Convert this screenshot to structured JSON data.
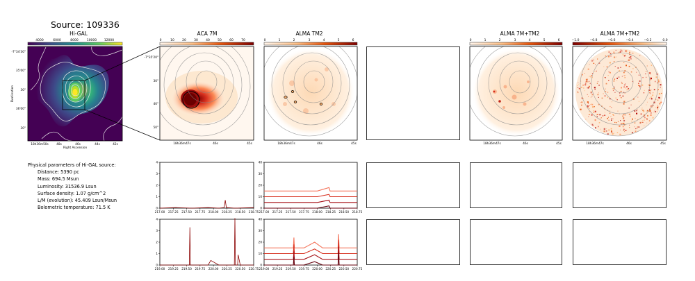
{
  "page_title": "Source: 109336",
  "panel_titles": {
    "higal": "Hi-GAL",
    "aca7m": "ACA 7M",
    "almatm2": "ALMA TM2",
    "combo1": "ALMA 7M+TM2",
    "combo2": "ALMA 7M+TM2"
  },
  "colorbars": {
    "higal": {
      "ticks": [
        "4000",
        "6000",
        "8000",
        "10000",
        "12000"
      ]
    },
    "aca7m": {
      "ticks": [
        "0",
        "10",
        "20",
        "30",
        "40",
        "50",
        "60",
        "70"
      ]
    },
    "almatm2": {
      "ticks": [
        "0",
        "1",
        "2",
        "3",
        "4",
        "5",
        "6"
      ]
    },
    "combo1": {
      "ticks": [
        "0",
        "1",
        "2",
        "3",
        "4",
        "5",
        "6"
      ]
    },
    "combo2": {
      "ticks": [
        "−1.0",
        "−0.8",
        "−0.6",
        "−0.4",
        "−0.2",
        "0.0"
      ]
    }
  },
  "higal_axes": {
    "yticks": [
      "-7°34'30\"",
      "35'00\"",
      "30\"",
      "36'00\"",
      "30\""
    ],
    "xticks": [
      "18h36m50s",
      "48s",
      "46s",
      "44s",
      "42s"
    ],
    "xlabel": "Right Ascension",
    "ylabel": "Declination"
  },
  "alma_axes": {
    "yticks": [
      "-7°35'20\"",
      "30\"",
      "40\"",
      "50\""
    ],
    "xticks": [
      "18h36m47s",
      "46s",
      "45s"
    ]
  },
  "params": {
    "header": "Physical parameters of Hi-GAL source:",
    "lines": [
      "Distance: 5390 pc",
      "Mass: 694.5 Msun",
      "Luminosity: 31536.9 Lsun",
      "Surface density: 1.07 g/cm^2",
      "L/M (evolution): 45.409 Lsun/Msun",
      "Bolometric temperature: 71.5 K"
    ]
  },
  "colors": {
    "spectrum_aca": "#8b0000",
    "spectrum_alma": [
      "#f4735a",
      "#d7301f",
      "#a50f15",
      "#67000d"
    ],
    "viridis_low": "#440154",
    "viridis_high": "#fde725"
  },
  "chart_data": [
    {
      "type": "line",
      "title": "",
      "panel": "ACA 7M spectrum, lower band",
      "xlim": [
        217.0,
        218.75
      ],
      "ylim": [
        0,
        4
      ],
      "xticks": [
        "217.00",
        "217.25",
        "217.50",
        "217.75",
        "218.00",
        "218.25",
        "218.50",
        "218.75"
      ],
      "yticks": [
        "0",
        "1",
        "2",
        "3",
        "4"
      ],
      "series": [
        {
          "x": [
            217.0,
            217.3,
            217.6,
            217.9,
            218.1,
            218.2,
            218.22,
            218.24,
            218.4,
            218.75
          ],
          "y": [
            0.0,
            0.05,
            0.0,
            0.05,
            0.0,
            0.05,
            0.7,
            0.05,
            0.0,
            0.05
          ]
        }
      ]
    },
    {
      "type": "line",
      "title": "",
      "panel": "ALMA TM2 spectrum, lower band",
      "xlim": [
        217.0,
        218.75
      ],
      "ylim": [
        0,
        40
      ],
      "xticks": [
        "217.00",
        "217.25",
        "217.50",
        "217.75",
        "218.00",
        "218.25",
        "218.50",
        "218.75"
      ],
      "yticks": [
        "0",
        "10",
        "20",
        "30",
        "40"
      ],
      "series": [
        {
          "x": [
            217.0,
            217.5,
            218.0,
            218.22,
            218.24,
            218.75
          ],
          "y": [
            15,
            15,
            15,
            18,
            15,
            15
          ]
        },
        {
          "x": [
            217.0,
            217.5,
            218.0,
            218.22,
            218.24,
            218.75
          ],
          "y": [
            10,
            10,
            10,
            12,
            10,
            10
          ]
        },
        {
          "x": [
            217.0,
            217.5,
            218.0,
            218.22,
            218.24,
            218.75
          ],
          "y": [
            5,
            5,
            5,
            7,
            5,
            5
          ]
        },
        {
          "x": [
            217.0,
            217.5,
            218.0,
            218.22,
            218.24,
            218.75
          ],
          "y": [
            0,
            0,
            0,
            2,
            0,
            0
          ]
        }
      ]
    },
    {
      "type": "line",
      "title": "",
      "panel": "ACA 7M spectrum, upper band",
      "xlim": [
        219.0,
        220.75
      ],
      "ylim": [
        0,
        4
      ],
      "xticks": [
        "219.00",
        "219.25",
        "219.50",
        "219.75",
        "220.00",
        "220.25",
        "220.50",
        "220.75"
      ],
      "yticks": [
        "0",
        "1",
        "2",
        "3",
        "4"
      ],
      "series": [
        {
          "x": [
            219.0,
            219.55,
            219.56,
            219.57,
            219.9,
            219.95,
            220.1,
            220.39,
            220.4,
            220.41,
            220.45,
            220.46,
            220.5,
            220.75
          ],
          "y": [
            0.0,
            0.0,
            3.3,
            0.0,
            0.0,
            0.4,
            0.0,
            0.0,
            4.1,
            0.0,
            0.0,
            0.9,
            0.0,
            0.0
          ]
        }
      ]
    },
    {
      "type": "line",
      "title": "",
      "panel": "ALMA TM2 spectrum, upper band",
      "xlim": [
        219.0,
        220.75
      ],
      "ylim": [
        0,
        40
      ],
      "xticks": [
        "219.00",
        "219.25",
        "219.50",
        "219.75",
        "220.00",
        "220.25",
        "220.50",
        "220.75"
      ],
      "yticks": [
        "0",
        "10",
        "20",
        "30",
        "40"
      ],
      "series": [
        {
          "x": [
            219.0,
            219.55,
            219.56,
            219.57,
            219.75,
            219.95,
            220.1,
            220.39,
            220.4,
            220.41,
            220.75
          ],
          "y": [
            15,
            15,
            24,
            15,
            15,
            20,
            15,
            15,
            27,
            15,
            15
          ]
        },
        {
          "x": [
            219.0,
            219.55,
            219.56,
            219.57,
            219.75,
            219.95,
            220.1,
            220.39,
            220.4,
            220.41,
            220.75
          ],
          "y": [
            10,
            10,
            18,
            10,
            10,
            14,
            10,
            10,
            22,
            10,
            10
          ]
        },
        {
          "x": [
            219.0,
            219.55,
            219.56,
            219.57,
            219.75,
            219.95,
            220.1,
            220.39,
            220.4,
            220.41,
            220.75
          ],
          "y": [
            5,
            5,
            12,
            5,
            5,
            9,
            5,
            5,
            16,
            5,
            5
          ]
        },
        {
          "x": [
            219.0,
            219.55,
            219.56,
            219.57,
            219.75,
            219.95,
            220.1,
            220.39,
            220.4,
            220.41,
            220.75
          ],
          "y": [
            0,
            0,
            7,
            0,
            0,
            3,
            0,
            0,
            11,
            0,
            0
          ]
        }
      ]
    }
  ]
}
